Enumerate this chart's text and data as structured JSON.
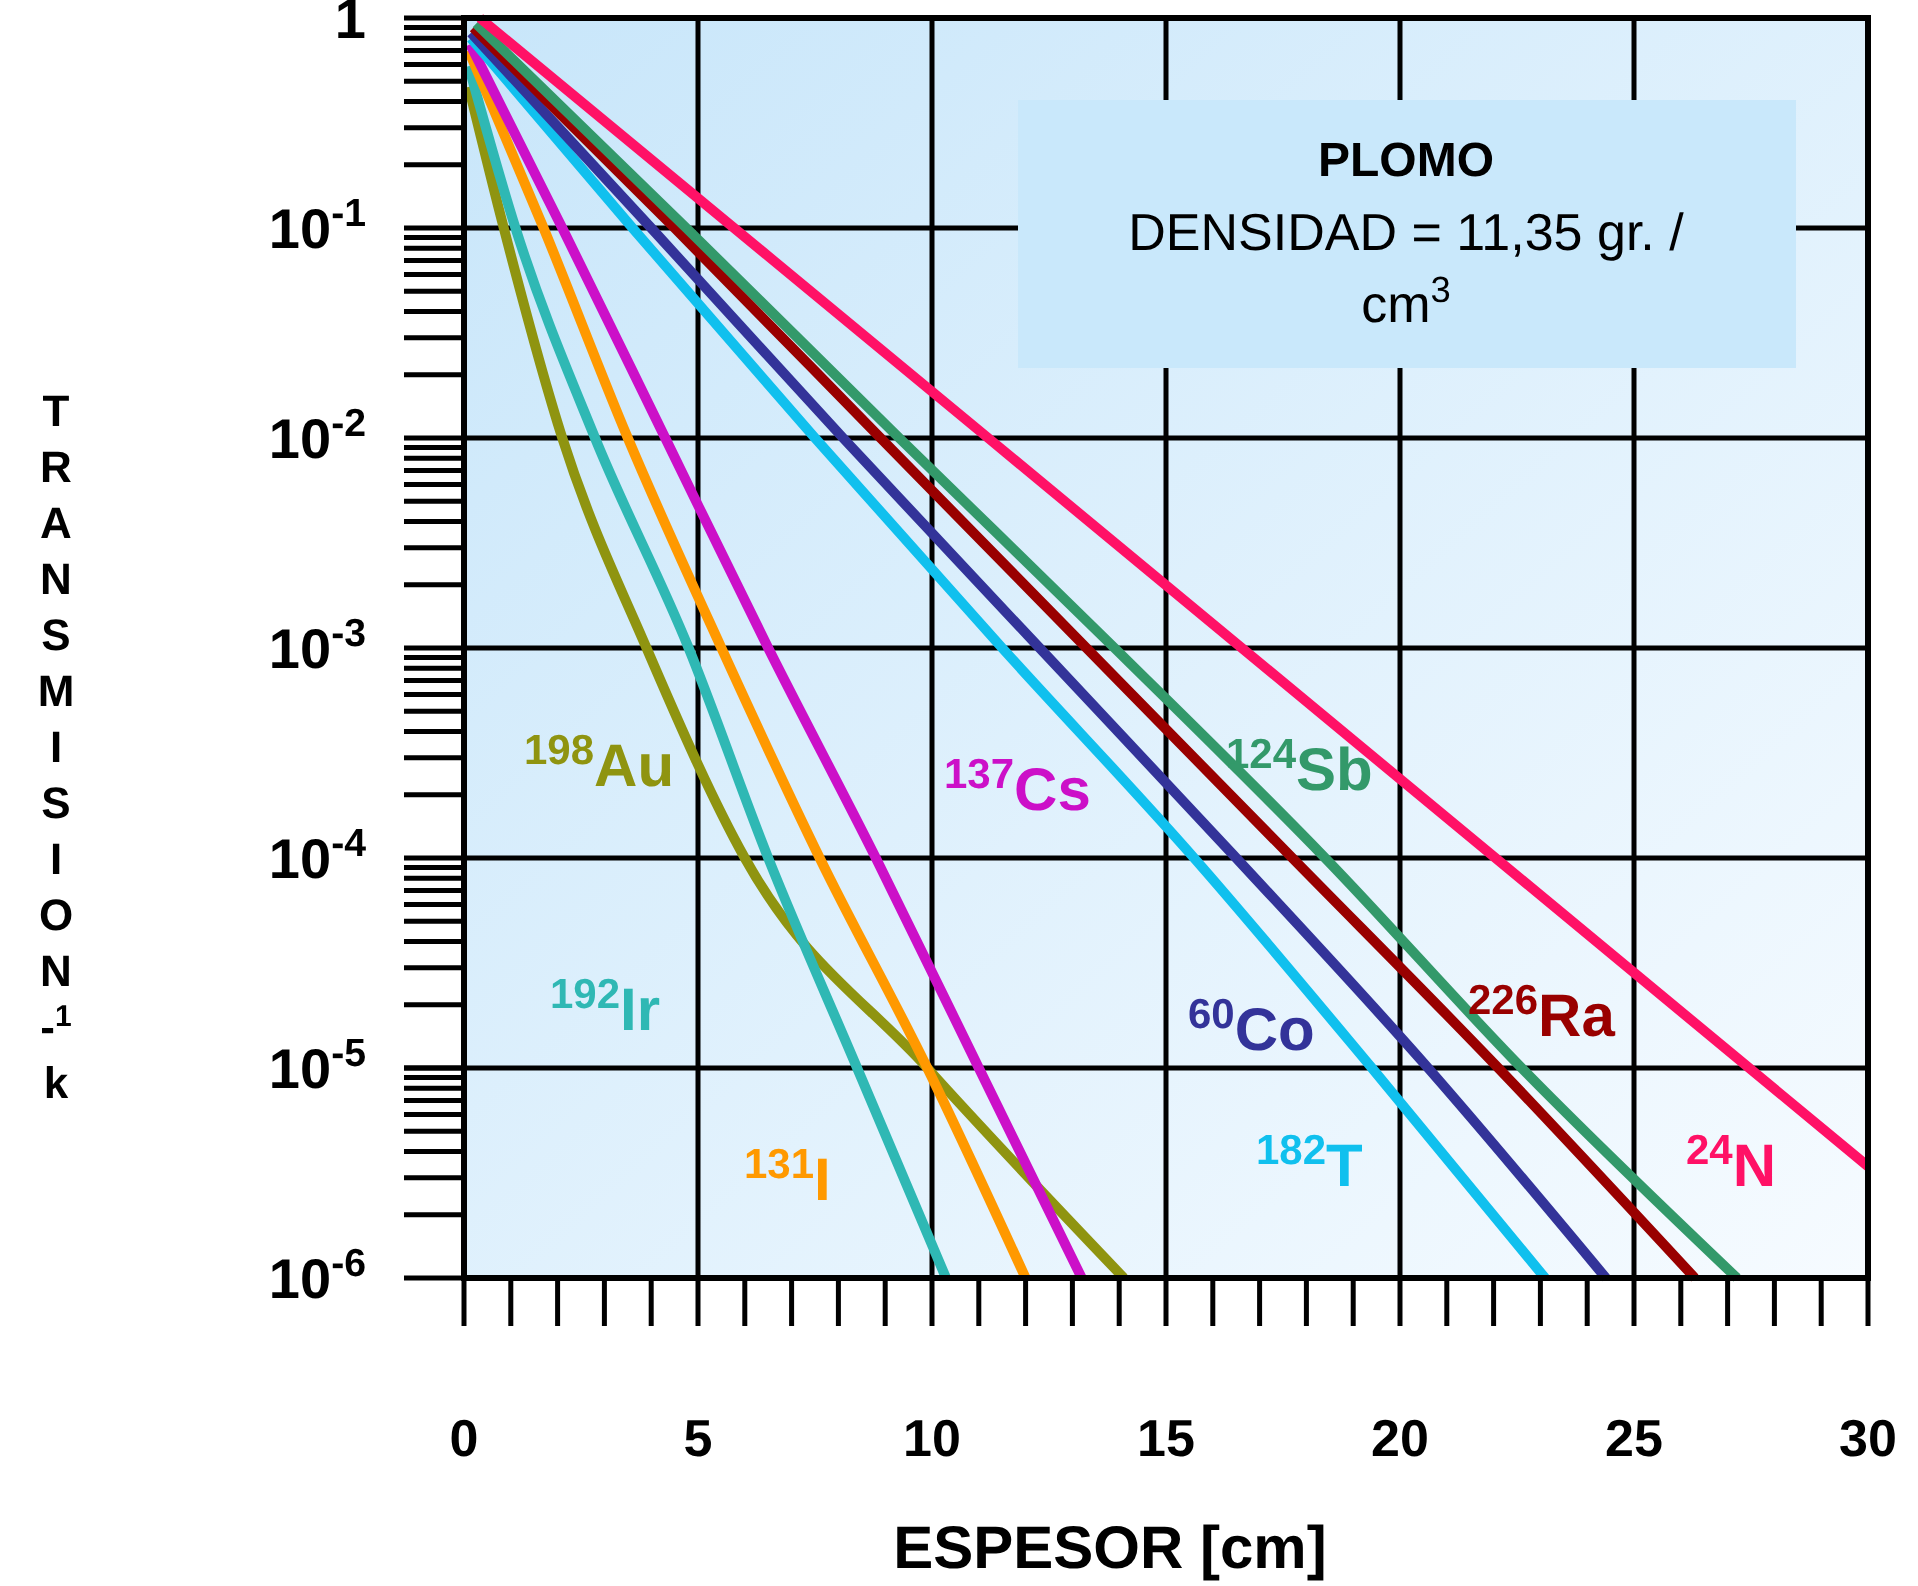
{
  "chart_data": {
    "type": "line",
    "xlabel": "ESPESOR [cm]",
    "ylabel": "TRANSMISION-$^{1}$k",
    "log": "y",
    "grid": true,
    "legend": false,
    "marker": "none",
    "line_style": "solid",
    "xlim": [
      0,
      30
    ],
    "ylim": [
      1e-06,
      1
    ],
    "xticks": [
      0,
      5,
      10,
      15,
      20,
      25,
      30
    ],
    "yticks": [
      {
        "value": 1e-06,
        "label": "10$^{-6}$"
      },
      {
        "value": 1e-05,
        "label": "10$^{-5}$"
      },
      {
        "value": 0.0001,
        "label": "10$^{-4}$"
      },
      {
        "value": 0.001,
        "label": "10$^{-3}$"
      },
      {
        "value": 0.01,
        "label": "10$^{-2}$"
      },
      {
        "value": 0.1,
        "label": "10$^{-1}$"
      },
      1
    ],
    "annotations": [
      "PLOMO",
      "DENSIDAD = 11,35 gr. / cm$^{3}$"
    ],
    "series": [
      {
        "name": "$^{198}$Au",
        "color": "#8f9410",
        "x": [
          0.1,
          0.85,
          2.1,
          3.9,
          6.0,
          9.9,
          14.1
        ],
        "values": [
          0.47,
          0.1,
          0.01,
          0.001,
          0.0001,
          1e-05,
          1e-06
        ]
      },
      {
        "name": "$^{192}$Ir",
        "color": "#2fb8b4",
        "x": [
          0.1,
          1.1,
          2.8,
          4.8,
          6.5,
          8.4,
          10.3
        ],
        "values": [
          0.59,
          0.1,
          0.01,
          0.001,
          0.0001,
          1e-05,
          1e-06
        ]
      },
      {
        "name": "$^{131}$I",
        "color": "#ff9900",
        "x": [
          0.1,
          1.7,
          3.5,
          5.5,
          7.6,
          9.9,
          12.0
        ],
        "values": [
          0.7,
          0.1,
          0.01,
          0.001,
          0.0001,
          1e-05,
          1e-06
        ]
      },
      {
        "name": "$^{137}$Cs",
        "color": "#cc10c8",
        "x": [
          0.13,
          2.1,
          4.3,
          6.5,
          8.8,
          11.0,
          13.2
        ],
        "values": [
          0.75,
          0.1,
          0.01,
          0.001,
          0.0001,
          1e-05,
          1e-06
        ]
      },
      {
        "name": "$^{182}$T",
        "color": "#10c0ee",
        "x": [
          0.15,
          3.6,
          7.5,
          11.5,
          15.6,
          19.4,
          23.1
        ],
        "values": [
          0.8,
          0.1,
          0.01,
          0.001,
          0.0001,
          1e-05,
          1e-06
        ]
      },
      {
        "name": "$^{60}$Co",
        "color": "#333399",
        "x": [
          0.15,
          4.0,
          8.1,
          12.3,
          16.5,
          20.6,
          24.4
        ],
        "values": [
          0.85,
          0.1,
          0.01,
          0.001,
          0.0001,
          1e-05,
          1e-06
        ]
      },
      {
        "name": "$^{226}$Ra",
        "color": "#990000",
        "x": [
          0.2,
          4.5,
          8.9,
          13.3,
          17.7,
          22.1,
          26.3
        ],
        "values": [
          0.9,
          0.1,
          0.01,
          0.001,
          0.0001,
          1e-05,
          1e-06
        ]
      },
      {
        "name": "$^{124}$Sb",
        "color": "#33996a",
        "x": [
          0.26,
          4.75,
          9.3,
          13.9,
          18.4,
          22.6,
          27.2
        ],
        "values": [
          0.94,
          0.1,
          0.01,
          0.001,
          0.0001,
          1e-05,
          1e-06
        ]
      },
      {
        "name": "$^{24}$N",
        "color": "#ff1166",
        "x": [
          0.34,
          11.2,
          30
        ],
        "values": [
          1,
          0.01,
          3.4e-06
        ]
      }
    ]
  }
}
